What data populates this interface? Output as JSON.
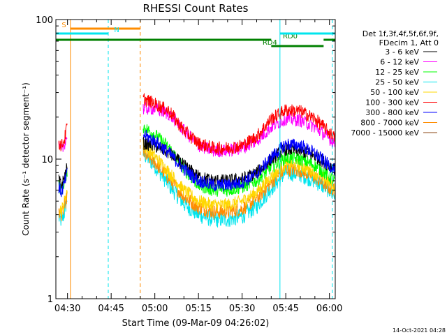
{
  "chart_data": {
    "type": "line",
    "title": "RHESSI Count Rates",
    "xlabel": "Start Time (09-Mar-09 04:26:02)",
    "ylabel": "Count Rate (s⁻¹ detector segment⁻¹)",
    "yscale": "log",
    "ylim": [
      1,
      100
    ],
    "xlim": [
      "04:26",
      "06:02"
    ],
    "x_ticks": [
      "04:30",
      "04:45",
      "05:00",
      "05:15",
      "05:30",
      "05:45",
      "06:00"
    ],
    "y_ticks": [
      "1",
      "10",
      "100"
    ],
    "legend": {
      "placement": "right",
      "header": [
        "Det 1f,3f,4f,5f,6f,9f,",
        "FDecim 1, Att 0"
      ]
    },
    "series": [
      {
        "name": "3 - 6 keV",
        "color": "#000000",
        "segments": [
          {
            "x": [
              "04:27",
              "04:28",
              "04:29",
              "04:30"
            ],
            "y": [
              7,
              6.5,
              7.5,
              9
            ]
          },
          {
            "x": [
              "04:56",
              "05:00",
              "05:05",
              "05:10",
              "05:15",
              "05:20",
              "05:25",
              "05:30",
              "05:35",
              "05:40",
              "05:45",
              "05:50",
              "05:55",
              "06:00",
              "06:02"
            ],
            "y": [
              13,
              12.5,
              11,
              9,
              7.5,
              7,
              7,
              7.2,
              8,
              10,
              11.8,
              11.5,
              10.5,
              9,
              8.5
            ]
          }
        ]
      },
      {
        "name": "6 - 12 keV",
        "color": "#ff00ff",
        "segments": [
          {
            "x": [
              "04:27",
              "04:28",
              "04:29",
              "04:30"
            ],
            "y": [
              12,
              11.5,
              13,
              15
            ]
          },
          {
            "x": [
              "04:56",
              "05:00",
              "05:05",
              "05:10",
              "05:15",
              "05:20",
              "05:25",
              "05:30",
              "05:35",
              "05:40",
              "05:45",
              "05:50",
              "05:55",
              "06:00",
              "06:02"
            ],
            "y": [
              23,
              23,
              21,
              16,
              12.5,
              11.5,
              11.5,
              12,
              13.5,
              17,
              19.5,
              19,
              17,
              14,
              13
            ]
          }
        ]
      },
      {
        "name": "12 - 25 keV",
        "color": "#00ff00",
        "segments": [
          {
            "x": [
              "04:27",
              "04:28",
              "04:29",
              "04:30"
            ],
            "y": [
              6.5,
              6,
              7,
              8.5
            ]
          },
          {
            "x": [
              "04:56",
              "05:00",
              "05:05",
              "05:10",
              "05:15",
              "05:20",
              "05:25",
              "05:30",
              "05:35",
              "05:40",
              "05:45",
              "05:50",
              "05:55",
              "06:00",
              "06:02"
            ],
            "y": [
              17,
              15,
              12,
              8.5,
              6.5,
              6,
              6,
              6.3,
              7,
              8.8,
              10.2,
              10,
              9,
              7.5,
              7
            ]
          }
        ]
      },
      {
        "name": "25 - 50 keV",
        "color": "#00e5ee",
        "segments": [
          {
            "x": [
              "04:27",
              "04:28",
              "04:29",
              "04:30"
            ],
            "y": [
              3.8,
              3.6,
              4.2,
              5.5
            ]
          },
          {
            "x": [
              "04:56",
              "05:00",
              "05:05",
              "05:10",
              "05:15",
              "05:20",
              "05:25",
              "05:30",
              "05:35",
              "05:40",
              "05:45",
              "05:50",
              "05:55",
              "06:00",
              "06:02"
            ],
            "y": [
              11,
              9,
              6.5,
              4.8,
              4,
              3.7,
              3.7,
              3.9,
              4.6,
              6.2,
              8,
              7.8,
              7,
              6,
              5.5
            ]
          }
        ]
      },
      {
        "name": "50 - 100 keV",
        "color": "#ffd700",
        "segments": [
          {
            "x": [
              "04:27",
              "04:28",
              "04:29",
              "04:30"
            ],
            "y": [
              4.5,
              4.3,
              5,
              6.2
            ]
          },
          {
            "x": [
              "04:56",
              "05:00",
              "05:05",
              "05:10",
              "05:15",
              "05:20",
              "05:25",
              "05:30",
              "05:35",
              "05:40",
              "05:45",
              "05:50",
              "05:55",
              "06:00",
              "06:02"
            ],
            "y": [
              12.5,
              10.5,
              8,
              6,
              5,
              4.7,
              4.7,
              5,
              5.8,
              7.5,
              9.2,
              9,
              8,
              6.8,
              6.3
            ]
          }
        ]
      },
      {
        "name": "100 - 300 keV",
        "color": "#ff0000",
        "segments": [
          {
            "x": [
              "04:27",
              "04:28",
              "04:29",
              "04:30"
            ],
            "y": [
              13,
              12.5,
              14,
              18
            ]
          },
          {
            "x": [
              "04:56",
              "05:00",
              "05:05",
              "05:10",
              "05:15",
              "05:20",
              "05:25",
              "05:30",
              "05:35",
              "05:40",
              "05:45",
              "05:50",
              "05:55",
              "06:00",
              "06:02"
            ],
            "y": [
              27,
              25,
              22,
              16,
              13,
              12,
              12,
              12.5,
              14.5,
              19.5,
              22.5,
              22,
              19.5,
              15.5,
              14
            ]
          }
        ]
      },
      {
        "name": "300 - 800 keV",
        "color": "#0000ff",
        "segments": [
          {
            "x": [
              "04:27",
              "04:28",
              "04:29",
              "04:30"
            ],
            "y": [
              6.2,
              5.8,
              6.8,
              8
            ]
          },
          {
            "x": [
              "04:56",
              "05:00",
              "05:05",
              "05:10",
              "05:15",
              "05:20",
              "05:25",
              "05:30",
              "05:35",
              "05:40",
              "05:45",
              "05:50",
              "05:55",
              "06:00",
              "06:02"
            ],
            "y": [
              15,
              13.5,
              11,
              8.5,
              7,
              6.5,
              6.5,
              6.8,
              7.8,
              10.3,
              12.8,
              12.5,
              11,
              9,
              8.3
            ]
          }
        ]
      },
      {
        "name": "800 - 7000 keV",
        "color": "#ff8c00",
        "segments": [
          {
            "x": [
              "04:27",
              "04:28",
              "04:29",
              "04:30"
            ],
            "y": [
              4.2,
              4,
              4.6,
              5.6
            ]
          },
          {
            "x": [
              "04:56",
              "05:00",
              "05:05",
              "05:10",
              "05:15",
              "05:20",
              "05:25",
              "05:30",
              "05:35",
              "05:40",
              "05:45",
              "05:50",
              "05:55",
              "06:00",
              "06:02"
            ],
            "y": [
              11,
              9.5,
              7.2,
              5.4,
              4.5,
              4.2,
              4.2,
              4.4,
              5.2,
              6.8,
              8.5,
              8.3,
              7.4,
              6.2,
              5.8
            ]
          }
        ]
      },
      {
        "name": "7000 - 15000 keV",
        "color": "#8b4513",
        "segments": []
      }
    ],
    "vertical_lines": [
      {
        "x": "04:26",
        "color": "#00e5ee",
        "style": "solid"
      },
      {
        "x": "04:31",
        "color": "#ff8c00",
        "style": "solid"
      },
      {
        "x": "04:44",
        "color": "#00e5ee",
        "style": "dashed"
      },
      {
        "x": "04:55",
        "color": "#ff8c00",
        "style": "dashed"
      },
      {
        "x": "05:43",
        "color": "#00e5ee",
        "style": "solid"
      },
      {
        "x": "06:01",
        "color": "#00e5ee",
        "style": "dashed"
      }
    ],
    "bars": [
      {
        "label": "S",
        "color": "#ff8c00",
        "y": 84,
        "x": [
          "04:31",
          "04:55"
        ],
        "label_x": "04:28"
      },
      {
        "label": "N",
        "color": "#00e5ee",
        "y": 76,
        "x": [
          "04:26",
          "04:44"
        ],
        "label_x": "04:46"
      },
      {
        "label": "",
        "color": "#008000",
        "y": 70,
        "x": [
          "04:26",
          "05:40"
        ]
      },
      {
        "label": "RD0",
        "color": "#008000",
        "y": 70,
        "x": [
          "05:58",
          "06:02"
        ],
        "label_x": "05:44"
      },
      {
        "label": "",
        "color": "#00e5ee",
        "y": 76,
        "x": [
          "05:43",
          "06:02"
        ]
      },
      {
        "label": "RD4",
        "color": "#008000",
        "y": 63,
        "x": [
          "05:40",
          "05:58"
        ],
        "label_x": "05:37"
      }
    ]
  },
  "footer_timestamp": "14-Oct-2021 04:28"
}
